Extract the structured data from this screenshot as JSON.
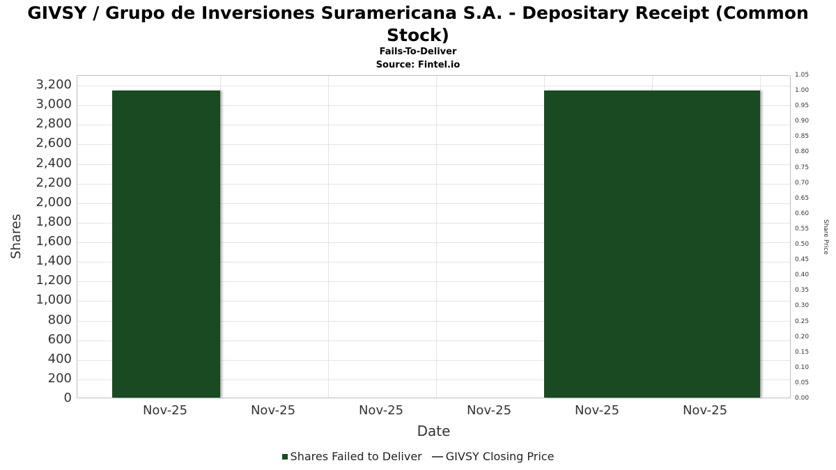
{
  "page": {
    "title": "GIVSY / Grupo de Inversiones Suramericana S.A. - Depositary Receipt (Common Stock)",
    "subtitle": "Fails-To-Deliver",
    "source": "Source: Fintel.io"
  },
  "chart_data": {
    "type": "bar",
    "title": "Fails-To-Deliver",
    "categories": [
      "Nov-25",
      "Nov-25",
      "Nov-25",
      "Nov-25",
      "Nov-25",
      "Nov-25"
    ],
    "series": [
      {
        "name": "Shares Failed to Deliver",
        "type": "bar",
        "axis": "left",
        "color": "#1a4a21",
        "values": [
          3140,
          0,
          0,
          0,
          3140,
          3140
        ]
      },
      {
        "name": "GIVSY Closing Price",
        "type": "line",
        "axis": "right",
        "color": "#555555",
        "values": []
      }
    ],
    "xlabel": "Date",
    "ylabel_left": "Shares",
    "ylabel_right": "Share Price",
    "left_axis": {
      "min": 0,
      "max": 3300,
      "ticks": [
        "0",
        "200",
        "400",
        "600",
        "800",
        "1,000",
        "1,200",
        "1,400",
        "1,600",
        "1,800",
        "2,000",
        "2,200",
        "2,400",
        "2,600",
        "2,800",
        "3,000",
        "3,200"
      ]
    },
    "right_axis": {
      "min": 0,
      "max": 1.05,
      "ticks": [
        "0.00",
        "0.05",
        "0.10",
        "0.15",
        "0.20",
        "0.25",
        "0.30",
        "0.35",
        "0.40",
        "0.45",
        "0.50",
        "0.55",
        "0.60",
        "0.65",
        "0.70",
        "0.75",
        "0.80",
        "0.85",
        "0.90",
        "0.95",
        "1.00",
        "1.05"
      ]
    },
    "grid": true,
    "legend_position": "bottom",
    "legend": [
      {
        "label": "Shares Failed to Deliver",
        "marker": "square",
        "color": "#1a4a21"
      },
      {
        "label": "GIVSY Closing Price",
        "marker": "line",
        "color": "#555555"
      }
    ]
  }
}
